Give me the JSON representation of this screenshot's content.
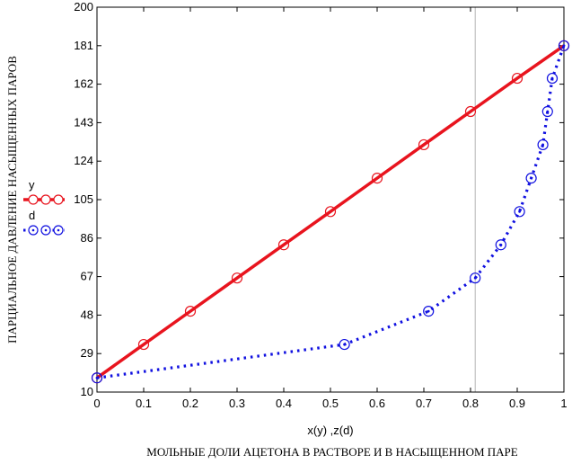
{
  "chart_data": {
    "type": "line",
    "ylabel": "ПАРЦИАЛЬНОЕ ДАВЛЕНИЕ НАСЫЩЕННЫХ ПАРОВ",
    "xlabel": "x(y) ,z(d)",
    "footer": "МОЛЬНЫЕ ДОЛИ АЦЕТОНА В РАСТВОРЕ И В НАСЫЩЕННОМ ПАРЕ",
    "xlim": [
      0,
      1
    ],
    "ylim": [
      10,
      200
    ],
    "x_ticks": [
      "0",
      "0.1",
      "0.2",
      "0.3",
      "0.4",
      "0.5",
      "0.6",
      "0.7",
      "0.8",
      "0.9",
      "1"
    ],
    "y_ticks": [
      "10",
      "29",
      "48",
      "67",
      "86",
      "105",
      "124",
      "143",
      "162",
      "181",
      "200"
    ],
    "vertical_marker_x": 0.81,
    "legend_position": "left-middle",
    "series": [
      {
        "name": "y",
        "color": "#e8141e",
        "style": "solid",
        "marker": "circle",
        "x": [
          0,
          0.1,
          0.2,
          0.3,
          0.4,
          0.5,
          0.6,
          0.7,
          0.8,
          0.9,
          1.0
        ],
        "y": [
          17,
          33.5,
          49.9,
          66.3,
          82.7,
          99.1,
          115.6,
          132.1,
          148.5,
          164.9,
          181
        ]
      },
      {
        "name": "d",
        "color": "#1010e0",
        "style": "dotted",
        "marker": "circle-dot",
        "x": [
          0,
          0.53,
          0.71,
          0.81,
          0.865,
          0.905,
          0.93,
          0.955,
          0.965,
          0.975,
          1.0
        ],
        "y": [
          17,
          33.5,
          49.9,
          66.3,
          82.7,
          99.1,
          115.6,
          132.1,
          148.5,
          164.9,
          181
        ]
      }
    ]
  }
}
